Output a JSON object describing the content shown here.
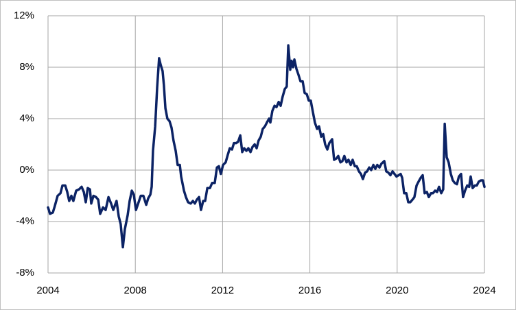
{
  "chart_data": {
    "type": "line",
    "color": "#0c2365",
    "grid": true,
    "xlim": [
      2004,
      2024
    ],
    "xticks": [
      2004,
      2008,
      2012,
      2016,
      2020,
      2024
    ],
    "ylim": [
      -8,
      12
    ],
    "yticks": [
      {
        "value": -8,
        "label": "-8%"
      },
      {
        "value": -4,
        "label": "-4%"
      },
      {
        "value": 0,
        "label": "0%"
      },
      {
        "value": 4,
        "label": "4%"
      },
      {
        "value": 8,
        "label": "8%"
      },
      {
        "value": 12,
        "label": "12%"
      }
    ],
    "x": [
      2004.0,
      2004.09,
      2004.22,
      2004.31,
      2004.44,
      2004.57,
      2004.66,
      2004.79,
      2004.88,
      2004.97,
      2005.07,
      2005.16,
      2005.29,
      2005.42,
      2005.54,
      2005.64,
      2005.73,
      2005.82,
      2005.92,
      2005.98,
      2006.08,
      2006.2,
      2006.3,
      2006.39,
      2006.52,
      2006.64,
      2006.77,
      2006.89,
      2006.99,
      2007.14,
      2007.24,
      2007.33,
      2007.43,
      2007.52,
      2007.65,
      2007.74,
      2007.84,
      2007.93,
      2008.03,
      2008.15,
      2008.25,
      2008.37,
      2008.5,
      2008.59,
      2008.69,
      2008.75,
      2008.81,
      2008.91,
      2009.0,
      2009.09,
      2009.16,
      2009.25,
      2009.31,
      2009.38,
      2009.47,
      2009.57,
      2009.66,
      2009.75,
      2009.85,
      2009.94,
      2010.04,
      2010.1,
      2010.23,
      2010.32,
      2010.42,
      2010.54,
      2010.64,
      2010.73,
      2010.82,
      2010.92,
      2011.01,
      2011.11,
      2011.2,
      2011.3,
      2011.42,
      2011.52,
      2011.64,
      2011.74,
      2011.83,
      2011.92,
      2012.02,
      2012.14,
      2012.24,
      2012.33,
      2012.43,
      2012.52,
      2012.62,
      2012.71,
      2012.81,
      2012.9,
      2012.99,
      2013.09,
      2013.18,
      2013.28,
      2013.37,
      2013.47,
      2013.56,
      2013.65,
      2013.75,
      2013.84,
      2013.94,
      2014.03,
      2014.13,
      2014.19,
      2014.28,
      2014.38,
      2014.47,
      2014.57,
      2014.66,
      2014.75,
      2014.85,
      2014.94,
      2015.01,
      2015.1,
      2015.16,
      2015.23,
      2015.29,
      2015.38,
      2015.48,
      2015.57,
      2015.67,
      2015.76,
      2015.86,
      2015.95,
      2016.04,
      2016.14,
      2016.23,
      2016.33,
      2016.42,
      2016.52,
      2016.61,
      2016.7,
      2016.8,
      2016.89,
      2017.02,
      2017.11,
      2017.21,
      2017.3,
      2017.4,
      2017.49,
      2017.58,
      2017.68,
      2017.77,
      2017.87,
      2017.96,
      2018.06,
      2018.15,
      2018.25,
      2018.34,
      2018.43,
      2018.53,
      2018.62,
      2018.72,
      2018.81,
      2018.91,
      2019.0,
      2019.09,
      2019.19,
      2019.28,
      2019.41,
      2019.5,
      2019.6,
      2019.69,
      2019.79,
      2019.88,
      2019.97,
      2020.07,
      2020.16,
      2020.23,
      2020.32,
      2020.42,
      2020.51,
      2020.6,
      2020.7,
      2020.79,
      2020.89,
      2020.98,
      2021.08,
      2021.17,
      2021.26,
      2021.36,
      2021.45,
      2021.55,
      2021.64,
      2021.74,
      2021.83,
      2021.92,
      2022.02,
      2022.11,
      2022.18,
      2022.27,
      2022.36,
      2022.46,
      2022.55,
      2022.64,
      2022.74,
      2022.83,
      2022.93,
      2023.02,
      2023.11,
      2023.21,
      2023.3,
      2023.37,
      2023.46,
      2023.56,
      2023.65,
      2023.74,
      2023.84,
      2023.93,
      2024.0
    ],
    "values": [
      -2.9,
      -3.4,
      -3.3,
      -2.8,
      -2.0,
      -1.8,
      -1.2,
      -1.2,
      -1.7,
      -2.4,
      -2.0,
      -2.4,
      -1.6,
      -1.5,
      -1.3,
      -1.7,
      -2.5,
      -1.4,
      -1.5,
      -2.6,
      -2.0,
      -2.1,
      -2.3,
      -3.4,
      -2.9,
      -3.1,
      -2.1,
      -2.6,
      -3.1,
      -2.4,
      -3.6,
      -4.2,
      -6.0,
      -4.6,
      -3.5,
      -2.4,
      -1.6,
      -1.9,
      -3.1,
      -2.5,
      -2.0,
      -2.0,
      -2.7,
      -2.2,
      -1.9,
      -1.3,
      1.5,
      3.4,
      6.4,
      8.7,
      8.2,
      7.7,
      6.6,
      4.8,
      4.0,
      3.8,
      3.3,
      2.3,
      1.5,
      0.4,
      0.4,
      -0.5,
      -1.6,
      -2.1,
      -2.5,
      -2.6,
      -2.4,
      -2.6,
      -2.3,
      -2.1,
      -3.1,
      -2.4,
      -2.4,
      -1.4,
      -1.4,
      -1.0,
      -1.0,
      0.2,
      0.3,
      -0.3,
      0.4,
      0.6,
      1.2,
      1.7,
      1.6,
      2.1,
      2.1,
      2.2,
      2.7,
      1.4,
      1.7,
      1.5,
      1.7,
      1.4,
      1.8,
      2.0,
      1.7,
      2.3,
      2.6,
      3.2,
      3.4,
      3.7,
      4.0,
      3.7,
      4.6,
      5.0,
      4.9,
      5.3,
      5.0,
      5.7,
      6.3,
      6.5,
      9.7,
      7.8,
      8.5,
      8.0,
      8.6,
      7.9,
      7.4,
      6.9,
      6.9,
      6.0,
      5.9,
      5.4,
      5.4,
      4.5,
      3.7,
      3.2,
      3.4,
      2.6,
      2.8,
      2.0,
      1.6,
      2.1,
      2.4,
      0.8,
      0.9,
      1.1,
      0.6,
      0.7,
      1.1,
      0.6,
      0.8,
      0.4,
      0.8,
      0.3,
      0.3,
      -0.1,
      -0.3,
      -0.7,
      -0.2,
      -0.1,
      0.2,
      0.0,
      0.4,
      0.1,
      0.4,
      0.2,
      0.5,
      0.7,
      -0.1,
      -0.2,
      -0.4,
      -0.1,
      -0.3,
      -0.5,
      -0.4,
      -0.3,
      -0.6,
      -1.8,
      -1.8,
      -2.5,
      -2.5,
      -2.3,
      -2.1,
      -1.2,
      -0.9,
      -0.6,
      -0.4,
      -1.8,
      -1.7,
      -2.1,
      -1.8,
      -1.8,
      -1.6,
      -1.7,
      -1.3,
      -1.8,
      -1.5,
      3.6,
      1.0,
      0.6,
      -0.3,
      -0.8,
      -1.0,
      -1.1,
      -0.5,
      -0.3,
      -2.1,
      -1.6,
      -1.2,
      -1.3,
      -0.5,
      -1.4,
      -1.2,
      -1.2,
      -0.9,
      -0.8,
      -0.8,
      -1.3
    ]
  }
}
